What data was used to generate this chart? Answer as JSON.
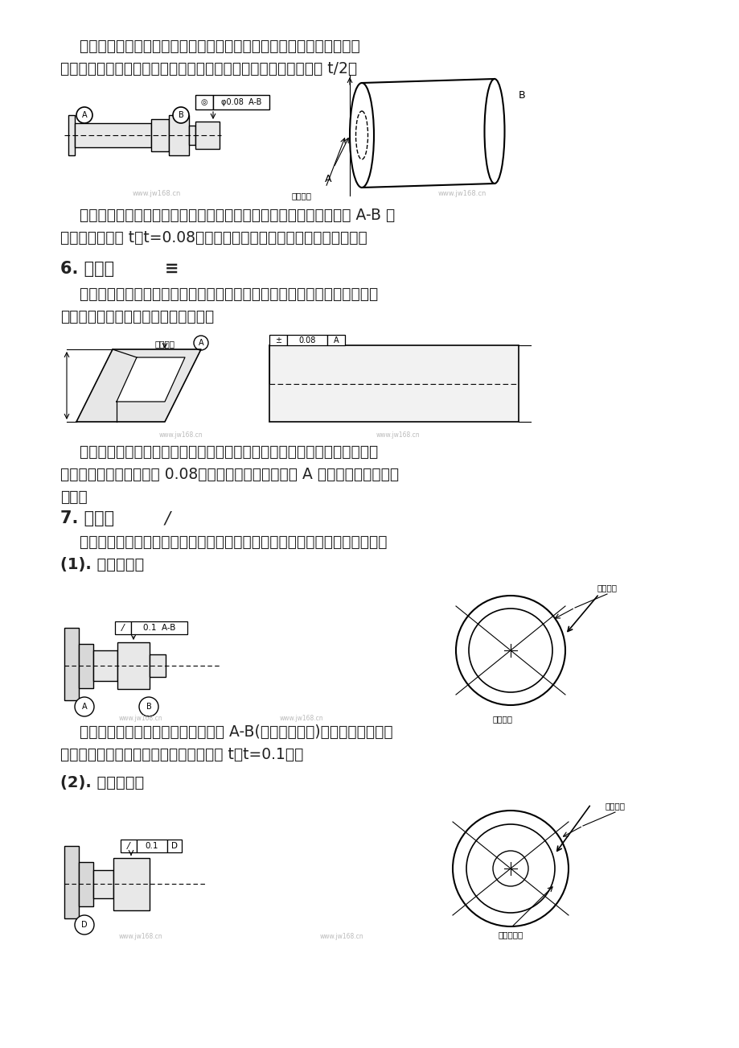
{
  "background_color": "#ffffff",
  "page_width": 9.2,
  "page_height": 13.02,
  "dpi": 100,
  "top_para1": "    同轴度，指工件要求的轴线偏离基准线所在直线的程度，即理论上应在",
  "top_para2": "同一直线上的两根轴线，他们发生了偏离，规定该偏离的最大值为 t/2。",
  "cap1_line1": "    标注释义：图中有同轴度要求的大圆的轴线必须位于以公共基准轴线 A-B 为",
  "cap1_line2": "轴线，以公差值 t（t=0.08）为直径的圆柱内，其公差带范围如右图。",
  "heading6": "6. 对称度",
  "sym6": "≡",
  "para6_1": "    对称度，指加工两表面的中心平面偏离基准的程度，即要求的对称中心与实",
  "para6_2": "际对称中心保持在同一平面内的状况。",
  "cap2_line1": "    标注释义：图中对称度图标所要表示的面为两加工面的中心平面，该中心平",
  "cap2_line2": "面必须位于距离为公差值 0.08，且相对于基准中心平面 A 对称分布的两平行平",
  "cap2_line3": "面之间",
  "heading7": "7. 圆跳动",
  "sym7": "/",
  "para7": "    圆跳动，指工件绕基准旋转一周，测量器具在固定位置的显示值的变动范围。",
  "sub71": "(1). 径向圆跳动",
  "cap3_line1": "    标注释义：当被测圆柱表面绕基准线 A-B(公共基准轴线)旋转一周时，圆柱",
  "cap3_line2": "表面任一截面圆的径向跳动量均不得大于 t（t=0.1）。",
  "sub72": "(2). 端面圆跳动",
  "wm": "www.jw168.cn",
  "gray": "#888888",
  "lightgray": "#cccccc",
  "black": "#000000",
  "white": "#ffffff"
}
